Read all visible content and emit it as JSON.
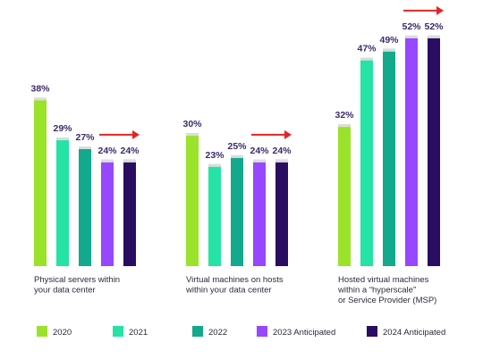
{
  "chart_data": {
    "type": "bar",
    "categories": [
      [
        "Physical servers within",
        "your data center"
      ],
      [
        "Virtual machines on hosts",
        "within your data center"
      ],
      [
        "Hosted virtual machines",
        "within a “hyperscale”",
        "or Service Provider (MSP)"
      ]
    ],
    "series": [
      {
        "name": "2020",
        "color": "#9be22a",
        "values": [
          38,
          30,
          32
        ]
      },
      {
        "name": "2021",
        "color": "#24e3a4",
        "values": [
          29,
          23,
          47
        ]
      },
      {
        "name": "2022",
        "color": "#12a98d",
        "values": [
          27,
          25,
          49
        ]
      },
      {
        "name": "2023 Anticipated",
        "color": "#9747ff",
        "values": [
          24,
          24,
          52
        ]
      },
      {
        "name": "2024 Anticipated",
        "color": "#2a0d62",
        "values": [
          24,
          24,
          52
        ]
      }
    ],
    "value_suffix": "%",
    "ylim": [
      0,
      54
    ],
    "arrow_color": "#e52421",
    "legend_position": "bottom"
  }
}
